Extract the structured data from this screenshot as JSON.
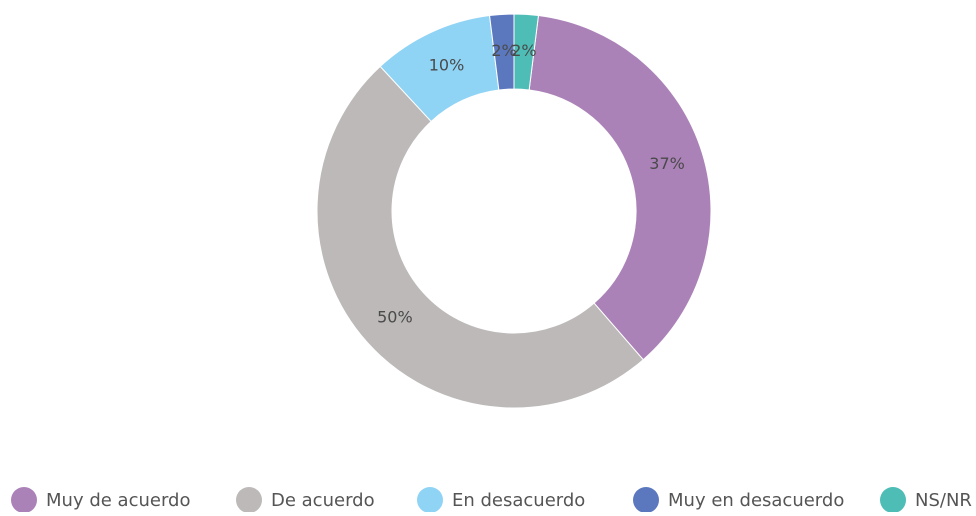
{
  "chart_data": {
    "type": "donut",
    "series": [
      {
        "name": "Muy de acuerdo",
        "color": "#ab82b8",
        "values": [
          37
        ],
        "value_labels": [
          "37%"
        ]
      },
      {
        "name": "De acuerdo",
        "color": "#bcb9b8",
        "values": [
          50
        ],
        "value_labels": [
          "50%"
        ]
      },
      {
        "name": "En desacuerdo",
        "color": "#8fd3f5",
        "values": [
          10
        ],
        "value_labels": [
          "10%"
        ]
      },
      {
        "name": "Muy en desacuerdo",
        "color": "#5b78bf",
        "values": [
          2
        ],
        "value_labels": [
          "2%"
        ]
      },
      {
        "name": "NS/NR",
        "color": "#4dbdb6",
        "values": [
          2
        ],
        "value_labels": [
          "2%"
        ]
      }
    ],
    "legend": "bottom"
  }
}
